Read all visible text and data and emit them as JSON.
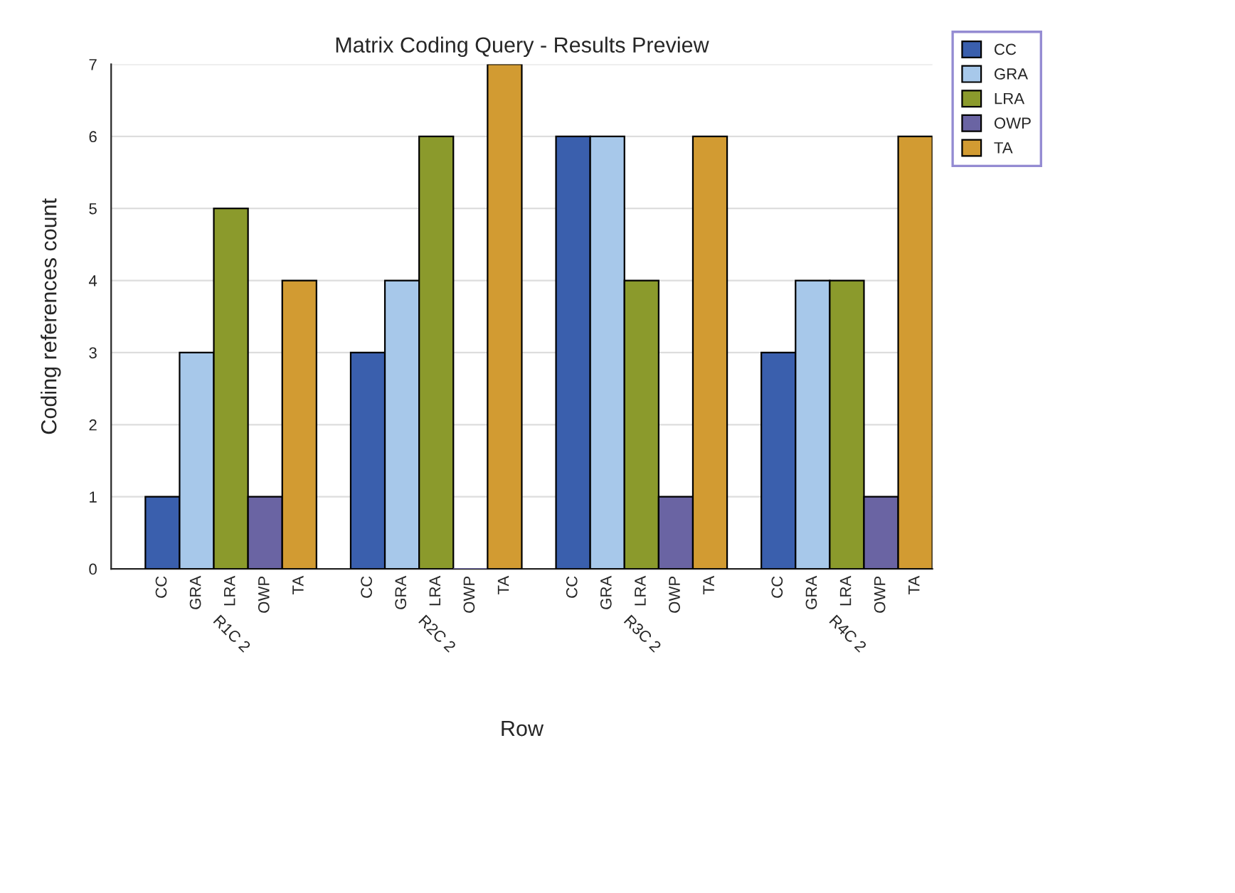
{
  "chart_data": {
    "type": "bar",
    "title": "Matrix Coding Query - Results Preview",
    "xlabel": "Row",
    "ylabel": "Coding references count",
    "categories": [
      "R1C 2",
      "R2C 2",
      "R3C 2",
      "R4C 2"
    ],
    "series": [
      {
        "name": "CC",
        "color": "#3a5fad",
        "values": [
          1,
          3,
          6,
          3
        ]
      },
      {
        "name": "GRA",
        "color": "#a7c8ea",
        "values": [
          3,
          4,
          6,
          4
        ]
      },
      {
        "name": "LRA",
        "color": "#8b9a2c",
        "values": [
          5,
          6,
          4,
          4
        ]
      },
      {
        "name": "OWP",
        "color": "#6a64a3",
        "values": [
          1,
          0,
          1,
          1
        ]
      },
      {
        "name": "TA",
        "color": "#d29b32",
        "values": [
          4,
          7,
          6,
          6
        ]
      }
    ],
    "ylim": [
      0,
      7
    ],
    "yticks": [
      0,
      1,
      2,
      3,
      4,
      5,
      6,
      7
    ],
    "grid": "y",
    "legend": "right"
  }
}
